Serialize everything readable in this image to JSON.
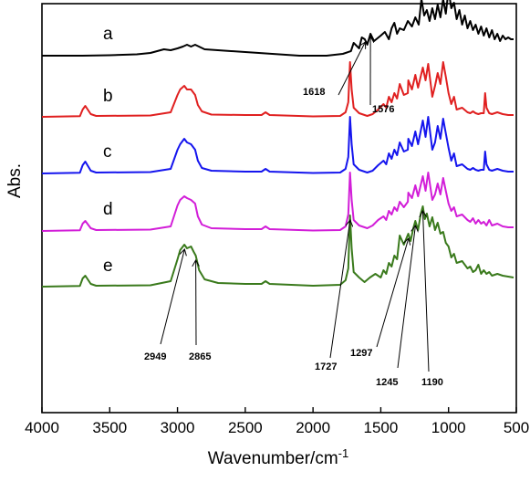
{
  "chart_data": {
    "type": "line",
    "title": "",
    "xlabel": "Wavenumber/cm",
    "xlabel_sup": "-1",
    "ylabel": "Abs.",
    "xlim": [
      4000,
      500
    ],
    "x_reversed": true,
    "x_ticks": [
      4000,
      3500,
      3000,
      2500,
      2000,
      1500,
      1000,
      500
    ],
    "y_ticks_shown": false,
    "grid": false,
    "legend": "none",
    "series": [
      {
        "name": "a",
        "color": "#000000",
        "baseline": 0,
        "x": [
          4000,
          3700,
          3500,
          3300,
          3200,
          3150,
          3100,
          3050,
          3000,
          2960,
          2930,
          2900,
          2870,
          2800,
          2500,
          2100,
          1900,
          1780,
          1720,
          1700,
          1660,
          1640,
          1618,
          1600,
          1576,
          1550,
          1500,
          1470,
          1440,
          1420,
          1400,
          1380,
          1360,
          1330,
          1300,
          1270,
          1245,
          1220,
          1200,
          1180,
          1160,
          1140,
          1120,
          1100,
          1080,
          1060,
          1040,
          1020,
          1000,
          980,
          960,
          940,
          920,
          900,
          880,
          860,
          840,
          820,
          800,
          780,
          760,
          740,
          720,
          700,
          680,
          660,
          640,
          620,
          600,
          580,
          560,
          540,
          520
        ],
        "y": [
          0,
          0,
          -0.5,
          -1.5,
          -3,
          -5,
          -7,
          -6,
          -8,
          -10,
          -12,
          -10,
          -12,
          -7,
          -4,
          0,
          0,
          -2,
          -5,
          -14,
          -8,
          -20,
          -18,
          -12,
          -24,
          -16,
          -22,
          -26,
          -18,
          -30,
          -36,
          -24,
          -30,
          -28,
          -38,
          -32,
          -42,
          -34,
          -62,
          -44,
          -50,
          -38,
          -52,
          -40,
          -56,
          -42,
          -62,
          -46,
          -72,
          -52,
          -58,
          -40,
          -50,
          -34,
          -44,
          -30,
          -38,
          -28,
          -34,
          -24,
          -32,
          -22,
          -30,
          -20,
          -28,
          -18,
          -24,
          -16,
          -22,
          -18,
          -20,
          -18,
          -18
        ]
      },
      {
        "name": "b",
        "color": "#e02020",
        "baseline": 0,
        "x": [
          4000,
          3720,
          3700,
          3680,
          3640,
          3600,
          3200,
          3050,
          3000,
          2980,
          2950,
          2930,
          2900,
          2870,
          2850,
          2820,
          2750,
          2500,
          2380,
          2350,
          2320,
          2000,
          1800,
          1760,
          1740,
          1727,
          1715,
          1700,
          1660,
          1600,
          1560,
          1520,
          1480,
          1460,
          1440,
          1420,
          1400,
          1380,
          1360,
          1330,
          1300,
          1297,
          1270,
          1245,
          1225,
          1190,
          1170,
          1150,
          1120,
          1100,
          1080,
          1060,
          1040,
          1020,
          1000,
          980,
          960,
          940,
          900,
          860,
          840,
          820,
          800,
          780,
          760,
          740,
          730,
          720,
          700,
          680,
          640,
          600,
          560,
          520
        ],
        "y": [
          0,
          -0.8,
          -8,
          -12,
          -3,
          -1,
          -1.5,
          -5,
          -24,
          -30,
          -34,
          -30,
          -30,
          -24,
          -13,
          -6,
          -2.5,
          -2,
          -2,
          -5,
          -2,
          -0.5,
          -1,
          -5,
          -16,
          -60,
          -30,
          -10,
          -4,
          -1,
          -3,
          -8,
          -14,
          -10,
          -22,
          -16,
          -26,
          -20,
          -36,
          -24,
          -26,
          -40,
          -30,
          -46,
          -32,
          -54,
          -40,
          -58,
          -22,
          -34,
          -48,
          -36,
          -60,
          -44,
          -26,
          -14,
          -22,
          -8,
          -10,
          -5,
          -4,
          -6,
          -4,
          -3,
          -4,
          -4,
          -26,
          -10,
          -4,
          -3,
          -5,
          -3,
          -2,
          -2
        ]
      },
      {
        "name": "c",
        "color": "#1515ee",
        "baseline": 0,
        "x": [
          4000,
          3720,
          3700,
          3680,
          3640,
          3600,
          3200,
          3050,
          3000,
          2980,
          2950,
          2930,
          2900,
          2870,
          2850,
          2820,
          2750,
          2500,
          2380,
          2350,
          2320,
          2000,
          1800,
          1760,
          1740,
          1727,
          1715,
          1700,
          1660,
          1600,
          1560,
          1520,
          1480,
          1460,
          1440,
          1420,
          1400,
          1380,
          1360,
          1330,
          1300,
          1297,
          1270,
          1245,
          1225,
          1190,
          1170,
          1150,
          1120,
          1100,
          1080,
          1060,
          1040,
          1020,
          1000,
          980,
          960,
          940,
          900,
          860,
          840,
          820,
          800,
          780,
          760,
          740,
          730,
          720,
          700,
          680,
          640,
          600,
          560,
          520
        ],
        "y": [
          0,
          -0.8,
          -9,
          -13,
          -3,
          -1,
          -1.5,
          -5,
          -26,
          -32,
          -38,
          -34,
          -32,
          -26,
          -14,
          -6,
          -3,
          -2,
          -2,
          -5,
          -2,
          -0.5,
          -1,
          -5,
          -18,
          -62,
          -32,
          -10,
          -4,
          -1,
          -3,
          -9,
          -14,
          -10,
          -22,
          -16,
          -26,
          -20,
          -34,
          -24,
          -26,
          -38,
          -30,
          -46,
          -32,
          -58,
          -40,
          -62,
          -26,
          -34,
          -52,
          -38,
          -60,
          -44,
          -28,
          -14,
          -22,
          -8,
          -10,
          -5,
          -4,
          -6,
          -4,
          -3,
          -4,
          -4,
          -24,
          -10,
          -4,
          -3,
          -5,
          -3,
          -2,
          -2
        ]
      },
      {
        "name": "d",
        "color": "#d21ed8",
        "baseline": 0,
        "x": [
          4000,
          3720,
          3700,
          3680,
          3640,
          3600,
          3200,
          3050,
          3000,
          2980,
          2950,
          2930,
          2900,
          2870,
          2850,
          2820,
          2750,
          2500,
          2380,
          2350,
          2320,
          2000,
          1800,
          1760,
          1740,
          1727,
          1715,
          1700,
          1660,
          1600,
          1560,
          1520,
          1480,
          1460,
          1440,
          1420,
          1400,
          1380,
          1360,
          1330,
          1300,
          1297,
          1270,
          1245,
          1225,
          1190,
          1170,
          1150,
          1120,
          1100,
          1080,
          1060,
          1040,
          1020,
          1000,
          980,
          960,
          940,
          900,
          860,
          840,
          820,
          800,
          780,
          760,
          740,
          720,
          700,
          680,
          640,
          600,
          560,
          520
        ],
        "y": [
          0,
          -0.8,
          -8,
          -11,
          -3,
          -1,
          -1.5,
          -5,
          -28,
          -34,
          -38,
          -36,
          -34,
          -30,
          -16,
          -7,
          -3,
          -2,
          -2,
          -5,
          -2,
          -0.5,
          -1,
          -5,
          -18,
          -64,
          -34,
          -12,
          -6,
          -3,
          -6,
          -12,
          -16,
          -12,
          -22,
          -18,
          -26,
          -22,
          -32,
          -26,
          -32,
          -42,
          -36,
          -50,
          -38,
          -60,
          -44,
          -64,
          -34,
          -40,
          -52,
          -40,
          -58,
          -44,
          -30,
          -22,
          -26,
          -16,
          -18,
          -12,
          -10,
          -14,
          -8,
          -12,
          -8,
          -10,
          -6,
          -12,
          -6,
          -8,
          -5,
          -4,
          -4
        ]
      },
      {
        "name": "e",
        "color": "#3a7a1c",
        "baseline": 0,
        "x": [
          4000,
          3720,
          3700,
          3680,
          3640,
          3600,
          3200,
          3050,
          3000,
          2980,
          2949,
          2930,
          2900,
          2880,
          2865,
          2840,
          2800,
          2700,
          2500,
          2380,
          2350,
          2320,
          2000,
          1800,
          1760,
          1740,
          1727,
          1715,
          1700,
          1660,
          1620,
          1580,
          1540,
          1500,
          1480,
          1460,
          1440,
          1420,
          1400,
          1380,
          1360,
          1330,
          1297,
          1280,
          1260,
          1245,
          1225,
          1205,
          1190,
          1175,
          1160,
          1140,
          1120,
          1100,
          1080,
          1060,
          1040,
          1020,
          1000,
          980,
          960,
          940,
          900,
          860,
          840,
          820,
          800,
          780,
          760,
          740,
          720,
          700,
          680,
          640,
          600,
          560,
          520
        ],
        "y": [
          0,
          -0.8,
          -9,
          -12,
          -3,
          -1,
          -1.5,
          -6,
          -30,
          -40,
          -46,
          -42,
          -44,
          -38,
          -34,
          -18,
          -8,
          -4,
          -3,
          -3,
          -6,
          -3,
          -1,
          -2,
          -7,
          -20,
          -78,
          -42,
          -16,
          -10,
          -5,
          -10,
          -14,
          -10,
          -18,
          -14,
          -26,
          -22,
          -34,
          -30,
          -56,
          -46,
          -58,
          -50,
          -64,
          -72,
          -62,
          -80,
          -88,
          -74,
          -80,
          -66,
          -76,
          -62,
          -70,
          -58,
          -60,
          -48,
          -44,
          -32,
          -36,
          -26,
          -28,
          -20,
          -22,
          -16,
          -18,
          -24,
          -14,
          -18,
          -14,
          -16,
          -12,
          -14,
          -12,
          -11,
          -10
        ]
      }
    ],
    "annotations": [
      {
        "text": "1618",
        "series": "a",
        "x": 1618
      },
      {
        "text": "1576",
        "series": "a",
        "x": 1576
      },
      {
        "text": "2949",
        "series": "e",
        "x": 2949
      },
      {
        "text": "2865",
        "series": "e",
        "x": 2865
      },
      {
        "text": "1727",
        "series": "e",
        "x": 1727
      },
      {
        "text": "1297",
        "series": "e",
        "x": 1297
      },
      {
        "text": "1245",
        "series": "e",
        "x": 1245
      },
      {
        "text": "1190",
        "series": "e",
        "x": 1190
      }
    ]
  }
}
